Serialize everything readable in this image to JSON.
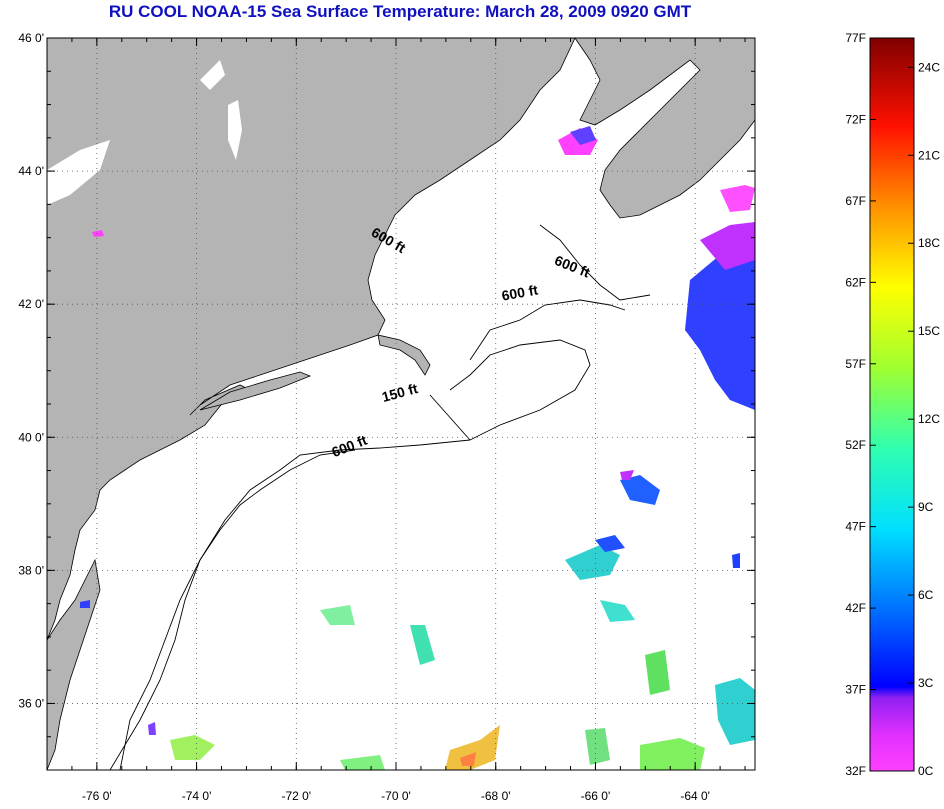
{
  "title": "RU COOL  NOAA-15  Sea Surface Temperature:  March 28, 2009 0920 GMT",
  "map": {
    "lon_range": [
      -77,
      -62.8
    ],
    "lat_range": [
      35,
      46
    ],
    "lon_ticks": [
      -76,
      -74,
      -72,
      -70,
      -68,
      -66,
      -64
    ],
    "lat_ticks": [
      36,
      38,
      40,
      42,
      44,
      46
    ],
    "lon_tick_labels": [
      "-76 0'",
      "-74 0'",
      "-72 0'",
      "-70 0'",
      "-68 0'",
      "-66 0'",
      "-64 0'"
    ],
    "lat_tick_labels": [
      "36 0'",
      "38 0'",
      "40 0'",
      "42 0'",
      "44 0'",
      "46 0'"
    ],
    "land_color": "#b4b4b4",
    "ocean_color": "#ffffff",
    "grid": "dotted"
  },
  "contour_labels": [
    {
      "text": "600 ft",
      "lon": -70.2,
      "lat": 42.9
    },
    {
      "text": "600 ft",
      "lon": -66.5,
      "lat": 42.5
    },
    {
      "text": "600 ft",
      "lon": -67.5,
      "lat": 42.1
    },
    {
      "text": "150 ft",
      "lon": -69.9,
      "lat": 40.6
    },
    {
      "text": "600 ft",
      "lon": -70.9,
      "lat": 39.8
    }
  ],
  "colorbar": {
    "f_labels": [
      "77F",
      "72F",
      "67F",
      "62F",
      "57F",
      "52F",
      "47F",
      "42F",
      "37F",
      "32F"
    ],
    "c_labels": [
      "24C",
      "21C",
      "18C",
      "15C",
      "12C",
      "9C",
      "6C",
      "3C",
      "0C"
    ],
    "f_range": [
      32,
      77
    ],
    "colors": [
      "#ff40ff",
      "#a020f0",
      "#0000ff",
      "#00a0ff",
      "#00ffff",
      "#40ff80",
      "#ffff00",
      "#ff8000",
      "#ff0000",
      "#800000"
    ]
  }
}
